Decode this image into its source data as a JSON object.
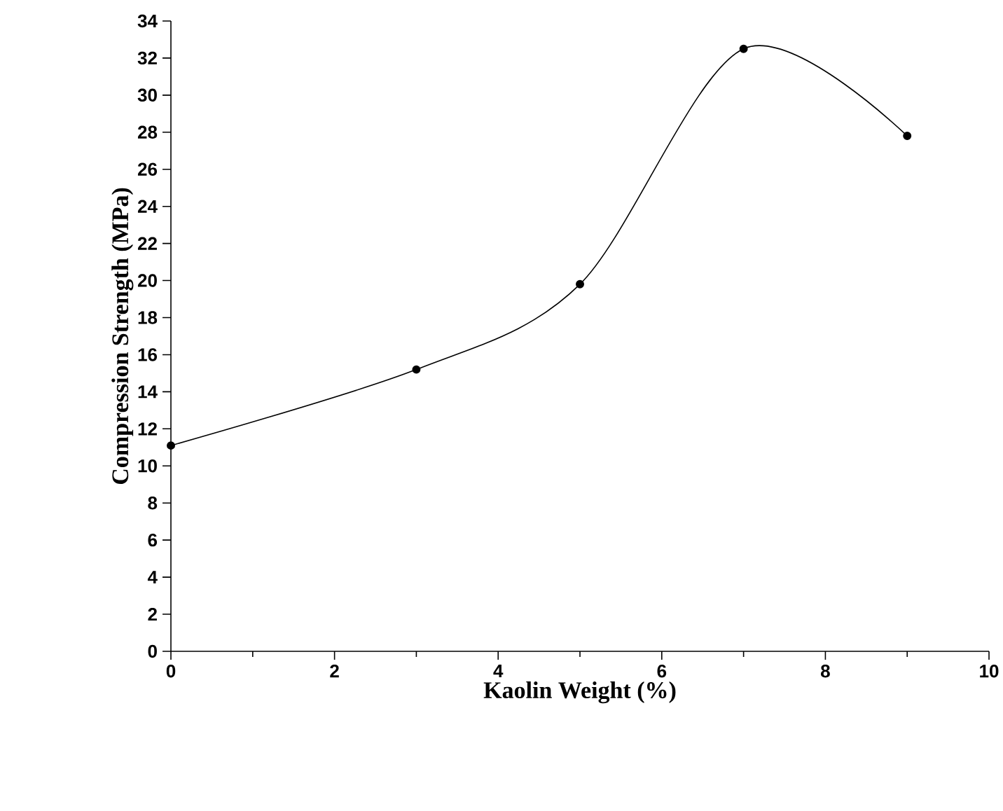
{
  "chart_data": {
    "type": "line",
    "xlabel": "Kaolin Weight (%)",
    "ylabel": "Compression Strength (MPa)",
    "x": [
      0,
      3,
      5,
      7,
      9
    ],
    "series": [
      {
        "color": "#000000",
        "values": [
          11.1,
          15.2,
          19.8,
          32.5,
          27.8
        ]
      }
    ],
    "xlim": [
      0,
      10
    ],
    "xticks": [
      0,
      2,
      4,
      6,
      8,
      10
    ],
    "ylim": [
      0,
      34
    ],
    "yticks": [
      0,
      2,
      4,
      6,
      8,
      10,
      12,
      14,
      16,
      18,
      20,
      22,
      24,
      26,
      28,
      30,
      32,
      34
    ],
    "marker": "circle",
    "line_style": "solid"
  }
}
